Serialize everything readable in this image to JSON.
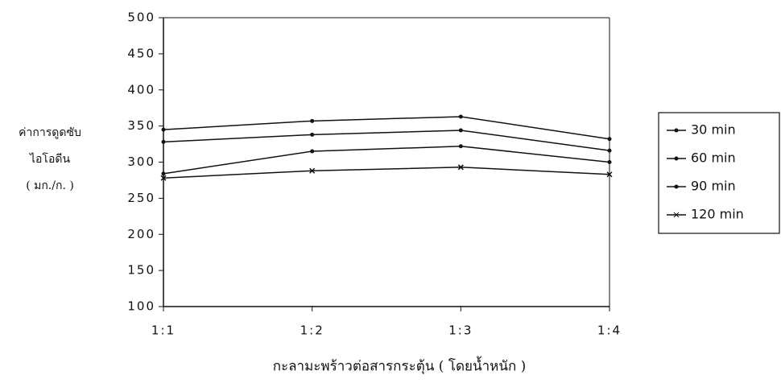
{
  "chart_data": {
    "type": "line",
    "y_label": [
      "ค่าการดูดซับ",
      "ไอโอดีน",
      "( มก./ก. )"
    ],
    "x_label": "กะลามะพร้าวต่อสารกระตุ้น ( โดยน้ำหนัก )",
    "categories": [
      "1:1",
      "1:2",
      "1:3",
      "1:4"
    ],
    "series": [
      {
        "name": "30 min",
        "color": "#111111",
        "marker": "dot",
        "values": [
          345,
          357,
          363,
          332
        ]
      },
      {
        "name": "60 min",
        "color": "#111111",
        "marker": "dot",
        "values": [
          328,
          338,
          344,
          316
        ]
      },
      {
        "name": "90 min",
        "color": "#111111",
        "marker": "dot",
        "values": [
          284,
          315,
          322,
          300
        ]
      },
      {
        "name": "120 min",
        "color": "#111111",
        "marker": "cross",
        "values": [
          278,
          288,
          293,
          283
        ]
      }
    ],
    "ylim": [
      100,
      500
    ],
    "yticks": [
      100,
      150,
      200,
      250,
      300,
      350,
      400,
      450,
      500
    ],
    "legend": "right"
  }
}
